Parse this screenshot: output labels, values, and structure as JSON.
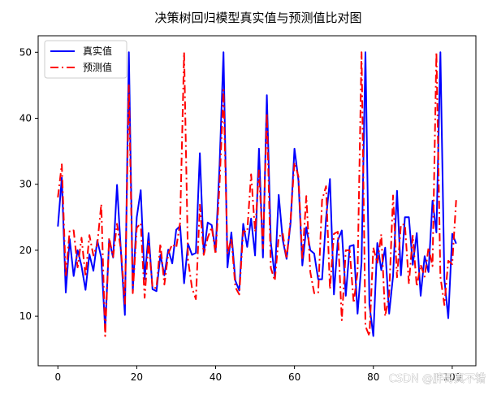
{
  "chart_data": {
    "type": "line",
    "title": "决策树回归模型真实值与预测值比对图",
    "xlabel": "",
    "ylabel": "",
    "xlim": [
      -5,
      106
    ],
    "ylim": [
      2.5,
      52.5
    ],
    "xticks": [
      0,
      20,
      40,
      60,
      80,
      100
    ],
    "yticks": [
      10,
      20,
      30,
      40,
      50
    ],
    "legend_position": "upper-left",
    "grid": false,
    "x": [
      0,
      1,
      2,
      3,
      4,
      5,
      6,
      7,
      8,
      9,
      10,
      11,
      12,
      13,
      14,
      15,
      16,
      17,
      18,
      19,
      20,
      21,
      22,
      23,
      24,
      25,
      26,
      27,
      28,
      29,
      30,
      31,
      32,
      33,
      34,
      35,
      36,
      37,
      38,
      39,
      40,
      41,
      42,
      43,
      44,
      45,
      46,
      47,
      48,
      49,
      50,
      51,
      52,
      53,
      54,
      55,
      56,
      57,
      58,
      59,
      60,
      61,
      62,
      63,
      64,
      65,
      66,
      67,
      68,
      69,
      70,
      71,
      72,
      73,
      74,
      75,
      76,
      77,
      78,
      79,
      80,
      81,
      82,
      83,
      84,
      85,
      86,
      87,
      88,
      89,
      90,
      91,
      92,
      93,
      94,
      95,
      96,
      97,
      98,
      99,
      100,
      101
    ],
    "series": [
      {
        "name": "真实值",
        "color": "#0000ff",
        "style": "solid",
        "values": [
          23.6,
          31,
          13.6,
          21.7,
          16.1,
          20,
          17.6,
          14,
          19.4,
          16.9,
          21.5,
          18.9,
          8,
          21.5,
          18.9,
          29.9,
          19.6,
          10.2,
          50,
          13.8,
          25,
          29.1,
          15.6,
          22.6,
          14.1,
          13.8,
          19.3,
          16.2,
          20.1,
          18,
          23.1,
          23.7,
          15,
          21,
          19.3,
          19.6,
          34.7,
          19.4,
          24.2,
          23.8,
          19.9,
          33,
          50,
          17.4,
          22.7,
          15.4,
          13.9,
          24,
          20.5,
          24.8,
          19.2,
          35.4,
          18.9,
          43.5,
          21.2,
          16,
          28.4,
          21.6,
          18.7,
          24.1,
          35.4,
          30.6,
          17.7,
          23.5,
          20,
          19.5,
          15.6,
          15.6,
          24.8,
          30.8,
          13.3,
          21.5,
          23,
          13.1,
          20.6,
          20.8,
          10.4,
          18.2,
          50,
          11.7,
          7,
          21.1,
          17,
          20.4,
          10.4,
          16.1,
          29,
          16.2,
          25,
          25,
          17.8,
          22.6,
          13.1,
          19.1,
          16.7,
          27.5,
          22.7,
          50,
          15.6,
          9.7,
          22.5,
          21
        ]
      },
      {
        "name": "预测值",
        "color": "#ff0000",
        "style": "dashdot",
        "values": [
          28,
          33,
          16,
          23,
          23,
          17.4,
          21.9,
          16,
          22.3,
          19.2,
          20.9,
          27,
          7,
          21.9,
          19,
          24,
          20,
          11.9,
          45,
          13.5,
          23.4,
          24.1,
          12.8,
          21.3,
          14.3,
          14.3,
          21,
          14.8,
          19.5,
          20.9,
          20.4,
          24.2,
          50,
          18.6,
          14.3,
          12.6,
          26.9,
          19.3,
          21.9,
          23.5,
          19.4,
          30.1,
          44.3,
          19.4,
          21.9,
          14.4,
          13.3,
          22.9,
          22.8,
          31.5,
          22.8,
          32.1,
          20.3,
          40.8,
          17.3,
          15.4,
          22,
          22.6,
          18.7,
          24.7,
          33.3,
          31.2,
          18.6,
          28.2,
          16.7,
          13.5,
          13.5,
          27.6,
          29.7,
          14.1,
          22.5,
          22.8,
          9.4,
          20,
          20,
          12,
          16.7,
          50,
          8.5,
          7,
          20.4,
          18,
          22.4,
          10,
          13.3,
          28.3,
          15.9,
          23.9,
          23.9,
          14.9,
          22.2,
          14.5,
          17.8,
          16,
          20.4,
          17.6,
          50,
          16,
          11.7,
          18.4,
          17.9,
          27.6
        ]
      }
    ]
  },
  "watermark": "CSDN @胖哥真不错"
}
